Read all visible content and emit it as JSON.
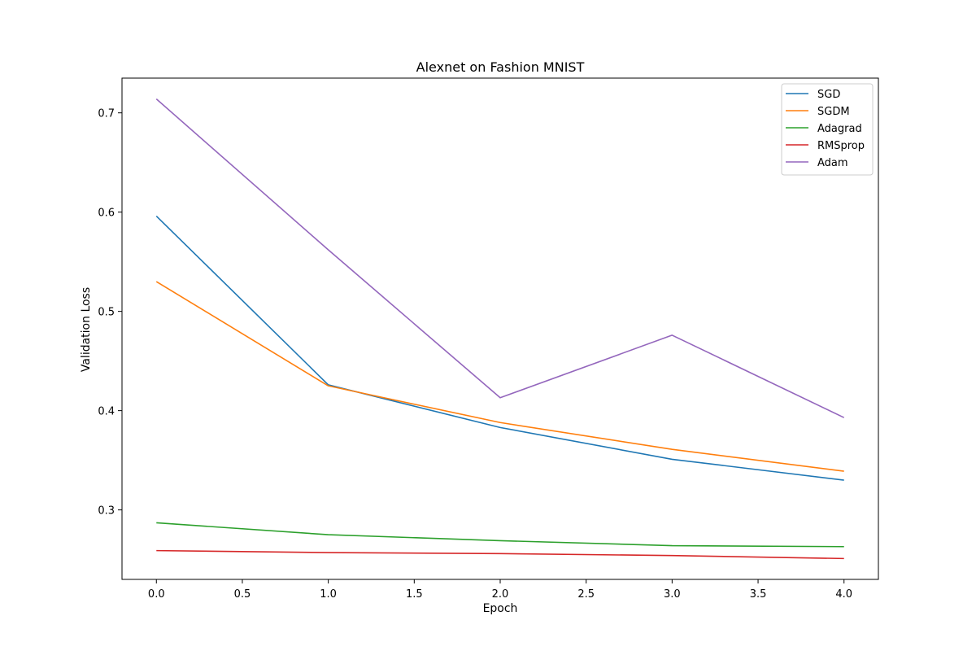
{
  "chart_data": {
    "type": "line",
    "title": "Alexnet on Fashion MNIST",
    "xlabel": "Epoch",
    "ylabel": "Validation Loss",
    "xlim": [
      -0.2,
      4.2
    ],
    "ylim": [
      0.23,
      0.735
    ],
    "xticks": [
      0.0,
      0.5,
      1.0,
      1.5,
      2.0,
      2.5,
      3.0,
      3.5,
      4.0
    ],
    "xtick_labels": [
      "0.0",
      "0.5",
      "1.0",
      "1.5",
      "2.0",
      "2.5",
      "3.0",
      "3.5",
      "4.0"
    ],
    "yticks": [
      0.3,
      0.4,
      0.5,
      0.6,
      0.7
    ],
    "ytick_labels": [
      "0.3",
      "0.4",
      "0.5",
      "0.6",
      "0.7"
    ],
    "grid": false,
    "legend_position": "top-right",
    "x": [
      0,
      1,
      2,
      3,
      4
    ],
    "series": [
      {
        "name": "SGD",
        "color": "#1f77b4",
        "values": [
          0.596,
          0.426,
          0.383,
          0.351,
          0.33
        ]
      },
      {
        "name": "SGDM",
        "color": "#ff7f0e",
        "values": [
          0.53,
          0.425,
          0.388,
          0.361,
          0.339
        ]
      },
      {
        "name": "Adagrad",
        "color": "#2ca02c",
        "values": [
          0.287,
          0.275,
          0.269,
          0.264,
          0.263
        ]
      },
      {
        "name": "RMSprop",
        "color": "#d62728",
        "values": [
          0.259,
          0.257,
          0.256,
          0.254,
          0.251
        ]
      },
      {
        "name": "Adam",
        "color": "#9467bd",
        "values": [
          0.714,
          0.562,
          0.413,
          0.476,
          0.393
        ]
      }
    ]
  }
}
